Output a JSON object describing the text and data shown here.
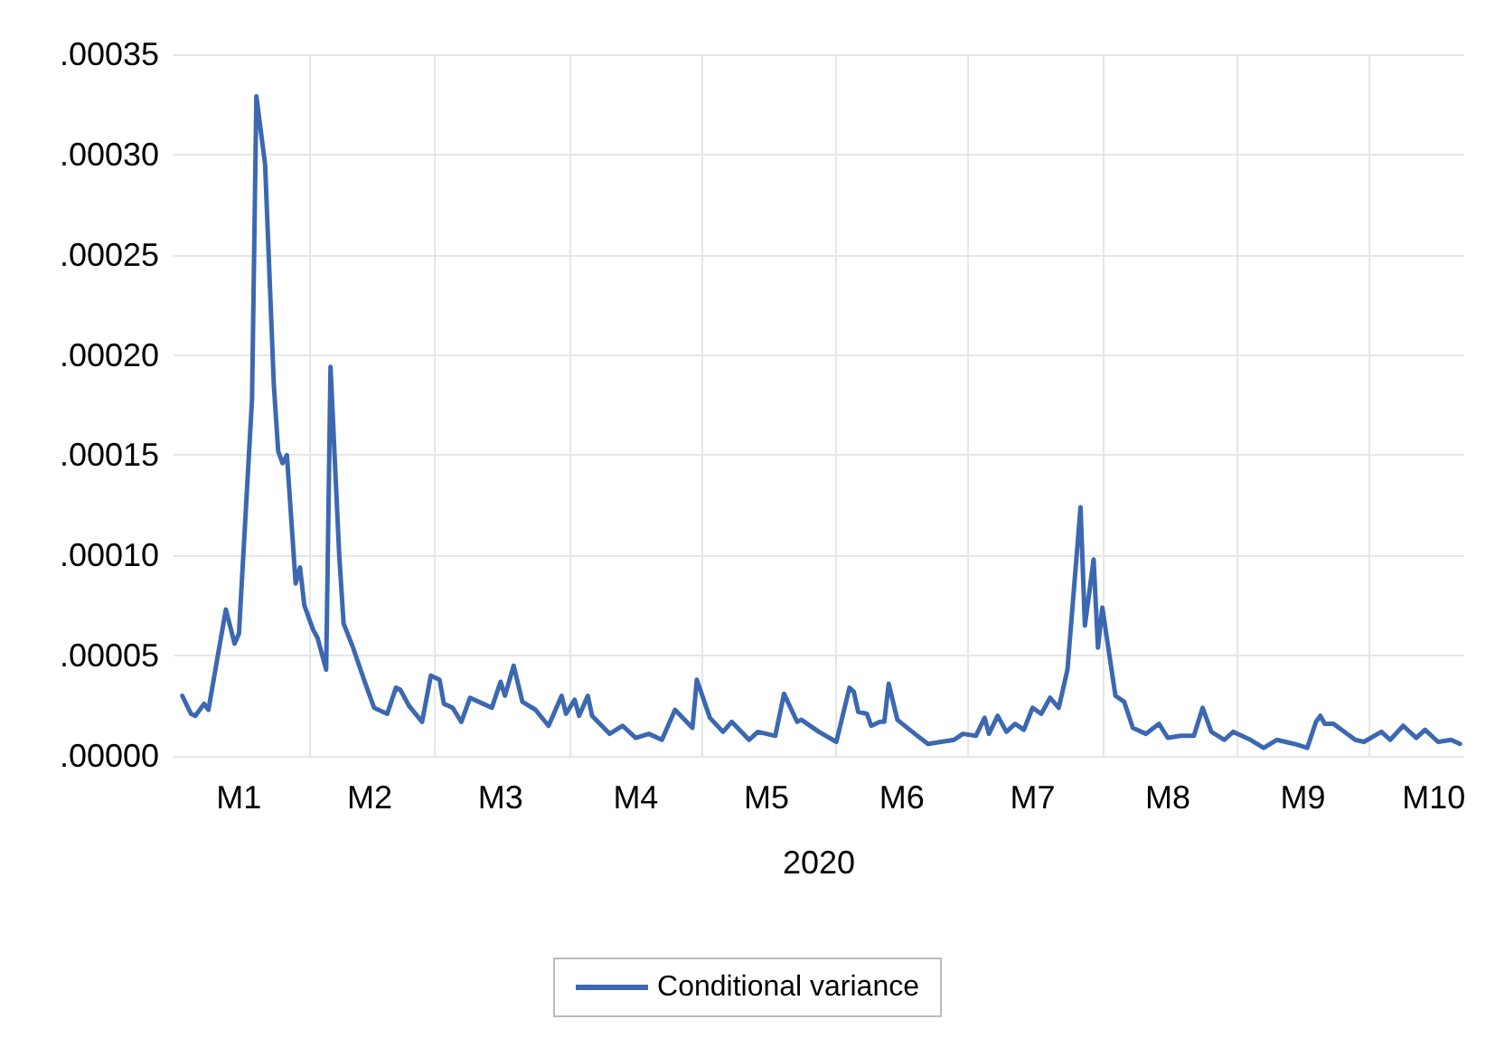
{
  "chart_data": {
    "type": "line",
    "xlabel": "2020",
    "legend": "bottom",
    "grid": true,
    "marker": "none",
    "line_style": "solid",
    "xlim": [
      "2020-01-01",
      "2020-10-23"
    ],
    "xticks": [
      {
        "value": "2020-01-16",
        "label": "M1"
      },
      {
        "value": "2020-02-01",
        "label": null
      },
      {
        "value": "2020-02-15",
        "label": "M2"
      },
      {
        "value": "2020-03-01",
        "label": null
      },
      {
        "value": "2020-03-16",
        "label": "M3"
      },
      {
        "value": "2020-04-01",
        "label": null
      },
      {
        "value": "2020-04-16",
        "label": "M4"
      },
      {
        "value": "2020-05-01",
        "label": null
      },
      {
        "value": "2020-05-16",
        "label": "M5"
      },
      {
        "value": "2020-06-01",
        "label": null
      },
      {
        "value": "2020-06-16",
        "label": "M6"
      },
      {
        "value": "2020-07-01",
        "label": null
      },
      {
        "value": "2020-07-16",
        "label": "M7"
      },
      {
        "value": "2020-08-01",
        "label": null
      },
      {
        "value": "2020-08-16",
        "label": "M8"
      },
      {
        "value": "2020-09-01",
        "label": null
      },
      {
        "value": "2020-09-16",
        "label": "M9"
      },
      {
        "value": "2020-10-01",
        "label": null
      },
      {
        "value": "2020-10-16",
        "label": "M10"
      }
    ],
    "ylim": [
      0,
      0.00035
    ],
    "yticks": [
      {
        "value": 0,
        "label": ".00000"
      },
      {
        "value": 5e-05,
        "label": ".00005"
      },
      {
        "value": 0.0001,
        "label": ".00010"
      },
      {
        "value": 0.00015,
        "label": ".00015"
      },
      {
        "value": 0.0002,
        "label": ".00020"
      },
      {
        "value": 0.00025,
        "label": ".00025"
      },
      {
        "value": 0.0003,
        "label": ".00030"
      },
      {
        "value": 0.00035,
        "label": ".00035"
      }
    ],
    "x": [
      "2020-01-03",
      "2020-01-05",
      "2020-01-06",
      "2020-01-08",
      "2020-01-09",
      "2020-01-13",
      "2020-01-15",
      "2020-01-16",
      "2020-01-19",
      "2020-01-20",
      "2020-01-22",
      "2020-01-24",
      "2020-01-25",
      "2020-01-26",
      "2020-01-27",
      "2020-01-29",
      "2020-01-30",
      "2020-01-31",
      "2020-02-02",
      "2020-02-03",
      "2020-02-05",
      "2020-02-06",
      "2020-02-08",
      "2020-02-09",
      "2020-02-11",
      "2020-02-14",
      "2020-02-16",
      "2020-02-19",
      "2020-02-21",
      "2020-02-22",
      "2020-02-24",
      "2020-02-27",
      "2020-02-29",
      "2020-03-02",
      "2020-03-03",
      "2020-03-05",
      "2020-03-07",
      "2020-03-09",
      "2020-03-12",
      "2020-03-14",
      "2020-03-16",
      "2020-03-17",
      "2020-03-19",
      "2020-03-21",
      "2020-03-24",
      "2020-03-27",
      "2020-03-30",
      "2020-03-31",
      "2020-04-02",
      "2020-04-03",
      "2020-04-05",
      "2020-04-06",
      "2020-04-10",
      "2020-04-13",
      "2020-04-16",
      "2020-04-19",
      "2020-04-22",
      "2020-04-25",
      "2020-04-29",
      "2020-04-30",
      "2020-05-03",
      "2020-05-06",
      "2020-05-08",
      "2020-05-12",
      "2020-05-14",
      "2020-05-18",
      "2020-05-20",
      "2020-05-23",
      "2020-05-24",
      "2020-05-28",
      "2020-06-01",
      "2020-06-04",
      "2020-06-05",
      "2020-06-06",
      "2020-06-08",
      "2020-06-09",
      "2020-06-11",
      "2020-06-12",
      "2020-06-13",
      "2020-06-15",
      "2020-06-19",
      "2020-06-22",
      "2020-06-25",
      "2020-06-28",
      "2020-06-30",
      "2020-07-03",
      "2020-07-05",
      "2020-07-06",
      "2020-07-08",
      "2020-07-10",
      "2020-07-12",
      "2020-07-14",
      "2020-07-16",
      "2020-07-18",
      "2020-07-20",
      "2020-07-22",
      "2020-07-24",
      "2020-07-27",
      "2020-07-28",
      "2020-07-30",
      "2020-07-31",
      "2020-08-01",
      "2020-08-04",
      "2020-08-06",
      "2020-08-08",
      "2020-08-11",
      "2020-08-14",
      "2020-08-16",
      "2020-08-19",
      "2020-08-22",
      "2020-08-24",
      "2020-08-26",
      "2020-08-29",
      "2020-08-31",
      "2020-09-04",
      "2020-09-07",
      "2020-09-10",
      "2020-09-14",
      "2020-09-17",
      "2020-09-19",
      "2020-09-20",
      "2020-09-21",
      "2020-09-23",
      "2020-09-28",
      "2020-09-30",
      "2020-10-04",
      "2020-10-06",
      "2020-10-09",
      "2020-10-12",
      "2020-10-14",
      "2020-10-17",
      "2020-10-20",
      "2020-10-22"
    ],
    "series": [
      {
        "name": "Conditional variance",
        "color": "#3c68b1",
        "values": [
          3e-05,
          2.1e-05,
          2e-05,
          2.6e-05,
          2.3e-05,
          7.3e-05,
          5.6e-05,
          6.1e-05,
          0.000178,
          0.000329,
          0.000295,
          0.000185,
          0.000152,
          0.000146,
          0.00015,
          8.6e-05,
          9.4e-05,
          7.5e-05,
          6.3e-05,
          5.9e-05,
          4.3e-05,
          0.000194,
          0.0001,
          6.6e-05,
          5.5e-05,
          3.6e-05,
          2.4e-05,
          2.1e-05,
          3.4e-05,
          3.3e-05,
          2.5e-05,
          1.7e-05,
          4e-05,
          3.8e-05,
          2.6e-05,
          2.4e-05,
          1.7e-05,
          2.9e-05,
          2.6e-05,
          2.4e-05,
          3.7e-05,
          3e-05,
          4.5e-05,
          2.7e-05,
          2.3e-05,
          1.5e-05,
          3e-05,
          2.1e-05,
          2.8e-05,
          2e-05,
          3e-05,
          2e-05,
          1.1e-05,
          1.5e-05,
          9e-06,
          1.1e-05,
          8e-06,
          2.3e-05,
          1.4e-05,
          3.8e-05,
          1.9e-05,
          1.2e-05,
          1.7e-05,
          8e-06,
          1.2e-05,
          1e-05,
          3.1e-05,
          1.7e-05,
          1.8e-05,
          1.2e-05,
          7e-06,
          3.4e-05,
          3.2e-05,
          2.2e-05,
          2.1e-05,
          1.5e-05,
          1.7e-05,
          1.7e-05,
          3.6e-05,
          1.8e-05,
          1.1e-05,
          6e-06,
          7e-06,
          8e-06,
          1.1e-05,
          1e-05,
          1.9e-05,
          1.1e-05,
          2e-05,
          1.2e-05,
          1.6e-05,
          1.3e-05,
          2.4e-05,
          2.1e-05,
          2.9e-05,
          2.4e-05,
          4.3e-05,
          0.000124,
          6.5e-05,
          9.8e-05,
          5.4e-05,
          7.4e-05,
          3e-05,
          2.7e-05,
          1.4e-05,
          1.1e-05,
          1.6e-05,
          9e-06,
          1e-05,
          1e-05,
          2.4e-05,
          1.2e-05,
          8e-06,
          1.2e-05,
          8e-06,
          4e-06,
          8e-06,
          6e-06,
          4e-06,
          1.7e-05,
          2e-05,
          1.6e-05,
          1.6e-05,
          8e-06,
          7e-06,
          1.2e-05,
          8e-06,
          1.5e-05,
          9e-06,
          1.3e-05,
          7e-06,
          8e-06,
          6e-06
        ]
      }
    ]
  }
}
